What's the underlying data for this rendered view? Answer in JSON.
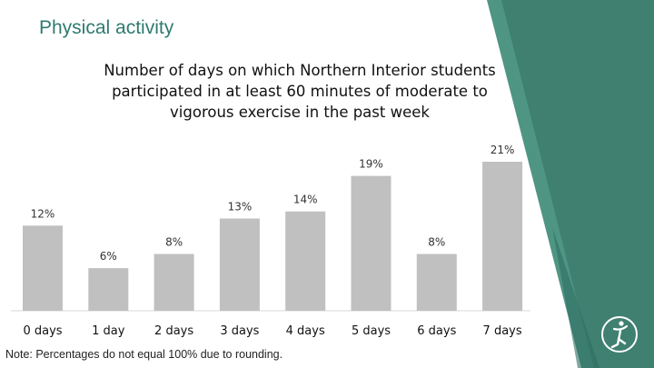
{
  "page": {
    "title": "Physical activity",
    "footnote": "Note: Percentages do not equal 100% due to rounding."
  },
  "colors": {
    "title": "#2e7b70",
    "bar": "#c0c0c0",
    "panel": "#3f8070",
    "panel_light": "#4a8e7d"
  },
  "chart_data": {
    "type": "bar",
    "title": "Number of days on which Northern Interior students participated in at least 60 minutes of moderate to vigorous exercise in the past week",
    "title_lines": [
      "Number of days on  which Northern Interior students",
      "participated in at least 60 minutes of moderate to",
      "vigorous exercise in the past  week"
    ],
    "categories": [
      "0 days",
      "1 day",
      "2 days",
      "3 days",
      "4 days",
      "5 days",
      "6 days",
      "7 days"
    ],
    "values": [
      12,
      6,
      8,
      13,
      14,
      19,
      8,
      21
    ],
    "data_labels": [
      "12%",
      "6%",
      "8%",
      "13%",
      "14%",
      "19%",
      "8%",
      "21%"
    ],
    "unit": "%",
    "ylim": [
      0,
      21
    ],
    "grid": false,
    "legend": "none"
  }
}
